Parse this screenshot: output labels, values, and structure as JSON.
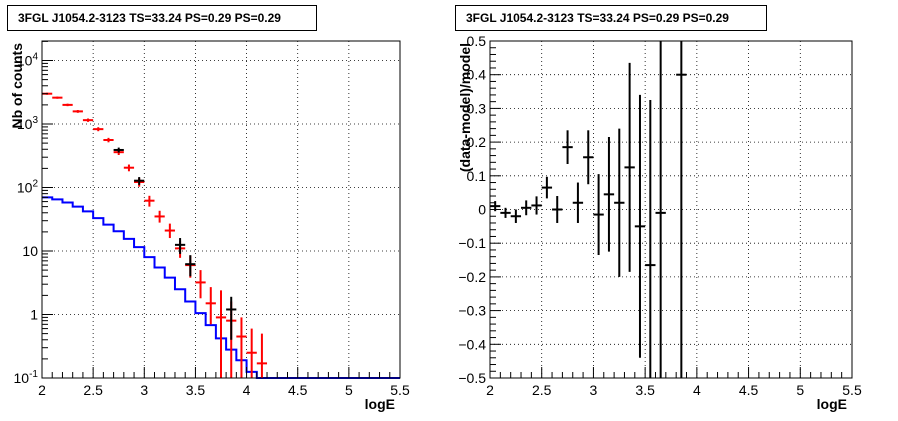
{
  "chart_data": [
    {
      "type": "step-histogram-with-errorbars",
      "title": "3FGL J1054.2-3123 TS=33.24 PS=0.29 PS=0.29",
      "xlabel": "logE",
      "ylabel": "Nb of counts",
      "xlim": [
        2,
        5.5
      ],
      "ylim": [
        0.1,
        20000
      ],
      "yscale": "log",
      "grid": true,
      "x_ticks": [
        "2",
        "2.5",
        "3",
        "3.5",
        "4",
        "4.5",
        "5",
        "5.5"
      ],
      "y_ticks": [
        {
          "base": "10",
          "exp": "-1",
          "value": 0.1
        },
        {
          "base": "1",
          "exp": "",
          "value": 1
        },
        {
          "base": "10",
          "exp": "",
          "value": 10
        },
        {
          "base": "10",
          "exp": "2",
          "value": 100
        },
        {
          "base": "10",
          "exp": "3",
          "value": 1000
        },
        {
          "base": "10",
          "exp": "4",
          "value": 10000
        }
      ],
      "bin_edges": [
        2.0,
        2.1,
        2.2,
        2.3,
        2.4,
        2.5,
        2.6,
        2.7,
        2.8,
        2.9,
        3.0,
        3.1,
        3.2,
        3.3,
        3.4,
        3.5,
        3.6,
        3.7,
        3.8,
        3.9,
        4.0,
        4.1,
        4.2,
        4.3,
        4.4,
        4.5,
        4.6,
        4.7,
        4.8,
        4.9,
        5.0,
        5.1,
        5.2,
        5.3,
        5.4,
        5.5
      ],
      "series": [
        {
          "color": "#ff0000",
          "style": "markers-with-errorbars",
          "points": [
            {
              "x": 2.05,
              "y": 3000,
              "ylo": 2890,
              "yhi": 3110
            },
            {
              "x": 2.15,
              "y": 2600,
              "ylo": 2500,
              "yhi": 2700
            },
            {
              "x": 2.25,
              "y": 2000,
              "ylo": 1910,
              "yhi": 2090
            },
            {
              "x": 2.35,
              "y": 1580,
              "ylo": 1500,
              "yhi": 1660
            },
            {
              "x": 2.45,
              "y": 1150,
              "ylo": 1080,
              "yhi": 1220
            },
            {
              "x": 2.55,
              "y": 830,
              "ylo": 770,
              "yhi": 890
            },
            {
              "x": 2.65,
              "y": 560,
              "ylo": 515,
              "yhi": 605
            },
            {
              "x": 2.75,
              "y": 360,
              "ylo": 325,
              "yhi": 395
            },
            {
              "x": 2.85,
              "y": 205,
              "ylo": 180,
              "yhi": 230
            },
            {
              "x": 2.95,
              "y": 122,
              "ylo": 103,
              "yhi": 141
            },
            {
              "x": 3.05,
              "y": 62,
              "ylo": 50,
              "yhi": 74
            },
            {
              "x": 3.15,
              "y": 35,
              "ylo": 28,
              "yhi": 43
            },
            {
              "x": 3.25,
              "y": 21,
              "ylo": 16,
              "yhi": 27
            },
            {
              "x": 3.35,
              "y": 11,
              "ylo": 7.8,
              "yhi": 14.5
            },
            {
              "x": 3.45,
              "y": 6,
              "ylo": 3.8,
              "yhi": 8.5
            },
            {
              "x": 3.55,
              "y": 3.2,
              "ylo": 1.8,
              "yhi": 5
            },
            {
              "x": 3.65,
              "y": 1.5,
              "ylo": 0.7,
              "yhi": 2.7
            },
            {
              "x": 3.75,
              "y": 0.9,
              "ylo": 0.1,
              "yhi": 2.4
            },
            {
              "x": 3.85,
              "y": 0.8,
              "ylo": 0.1,
              "yhi": 1.6
            },
            {
              "x": 3.95,
              "y": 0.45,
              "ylo": 0.1,
              "yhi": 0.9
            },
            {
              "x": 4.05,
              "y": 0.25,
              "ylo": 0.1,
              "yhi": 0.6
            },
            {
              "x": 4.15,
              "y": 0.17,
              "ylo": 0.1,
              "yhi": 0.5
            }
          ]
        },
        {
          "color": "#000000",
          "style": "markers-with-errorbars",
          "points": [
            {
              "x": 2.75,
              "y": 390,
              "ylo": 355,
              "yhi": 425
            },
            {
              "x": 2.95,
              "y": 128,
              "ylo": 110,
              "yhi": 146
            },
            {
              "x": 3.35,
              "y": 12.5,
              "ylo": 9,
              "yhi": 16
            },
            {
              "x": 3.45,
              "y": 6.2,
              "ylo": 4,
              "yhi": 8.6
            },
            {
              "x": 3.85,
              "y": 1.2,
              "ylo": 0.4,
              "yhi": 1.9
            }
          ]
        },
        {
          "color": "#0000ff",
          "style": "step",
          "values": [
            70,
            65,
            58,
            50,
            42,
            33,
            26,
            20.5,
            15.5,
            11.5,
            8,
            5.5,
            3.8,
            2.5,
            1.6,
            1.05,
            0.68,
            0.42,
            0.28,
            0.19,
            0.125,
            0.1,
            0.1,
            0.1,
            0.1,
            0.1,
            0.1,
            0.1,
            0.1,
            0.1,
            0.1,
            0.1,
            0.1,
            0.1,
            0.1
          ]
        }
      ]
    },
    {
      "type": "scatter-with-errorbars",
      "title": "3FGL J1054.2-3123 TS=33.24 PS=0.29 PS=0.29",
      "xlabel": "logE",
      "ylabel": "(data-model)/model",
      "xlim": [
        2,
        5.5
      ],
      "ylim": [
        -0.5,
        0.5
      ],
      "grid": true,
      "x_ticks": [
        "2",
        "2.5",
        "3",
        "3.5",
        "4",
        "4.5",
        "5",
        "5.5"
      ],
      "y_ticks": [
        "−0.5",
        "−0.4",
        "−0.3",
        "−0.2",
        "−0.1",
        "0",
        "0.1",
        "0.2",
        "0.3",
        "0.4",
        "0.5"
      ],
      "series": [
        {
          "color": "#000000",
          "points": [
            {
              "x": 2.05,
              "y": 0.01,
              "err": 0.015
            },
            {
              "x": 2.15,
              "y": -0.01,
              "err": 0.015
            },
            {
              "x": 2.25,
              "y": -0.02,
              "err": 0.02
            },
            {
              "x": 2.35,
              "y": 0.005,
              "err": 0.022
            },
            {
              "x": 2.45,
              "y": 0.012,
              "err": 0.027
            },
            {
              "x": 2.55,
              "y": 0.065,
              "err": 0.032
            },
            {
              "x": 2.65,
              "y": 0.0,
              "err": 0.04
            },
            {
              "x": 2.75,
              "y": 0.185,
              "err": 0.05
            },
            {
              "x": 2.85,
              "y": 0.02,
              "err": 0.06
            },
            {
              "x": 2.95,
              "y": 0.155,
              "err": 0.08
            },
            {
              "x": 3.05,
              "y": -0.015,
              "err": 0.12
            },
            {
              "x": 3.15,
              "y": 0.045,
              "err": 0.17
            },
            {
              "x": 3.25,
              "y": 0.02,
              "err": 0.22
            },
            {
              "x": 3.35,
              "y": 0.125,
              "err": 0.31
            },
            {
              "x": 3.45,
              "y": -0.05,
              "err": 0.39
            },
            {
              "x": 3.55,
              "y": -0.165,
              "err": 0.49
            },
            {
              "x": 3.65,
              "y": -0.01,
              "err": 0.6
            },
            {
              "x": 3.85,
              "y": 0.4,
              "err": 1.0
            }
          ]
        }
      ]
    }
  ]
}
